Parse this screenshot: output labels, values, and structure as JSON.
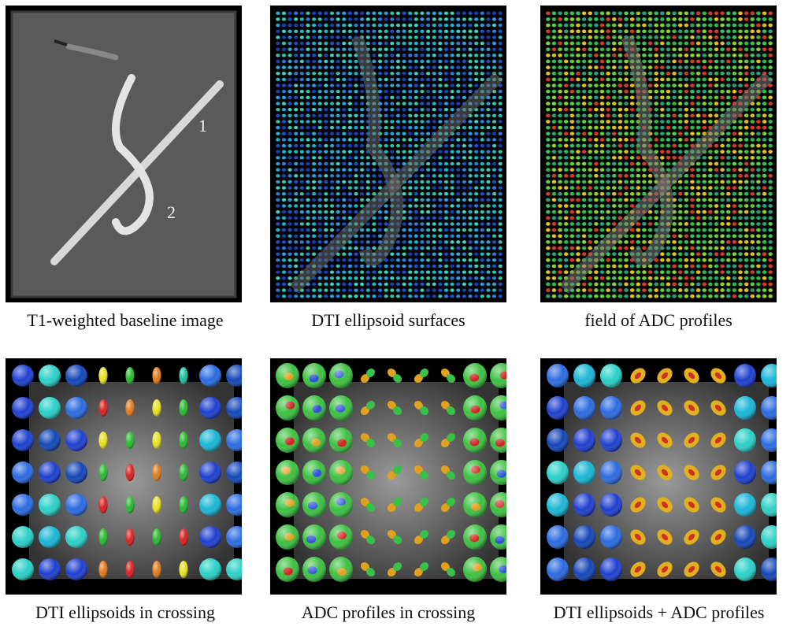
{
  "figure": {
    "panels": [
      {
        "id": "t1",
        "caption": "T1-weighted baseline image",
        "labels": [
          "1",
          "2"
        ]
      },
      {
        "id": "dti-field",
        "caption": "DTI ellipsoid surfaces"
      },
      {
        "id": "adc-field",
        "caption": "field of ADC profiles"
      },
      {
        "id": "dti-cross",
        "caption": "DTI ellipsoids in crossing"
      },
      {
        "id": "adc-cross",
        "caption": "ADC profiles in crossing"
      },
      {
        "id": "combo-cross",
        "caption": "DTI ellipsoids + ADC profiles"
      }
    ]
  }
}
